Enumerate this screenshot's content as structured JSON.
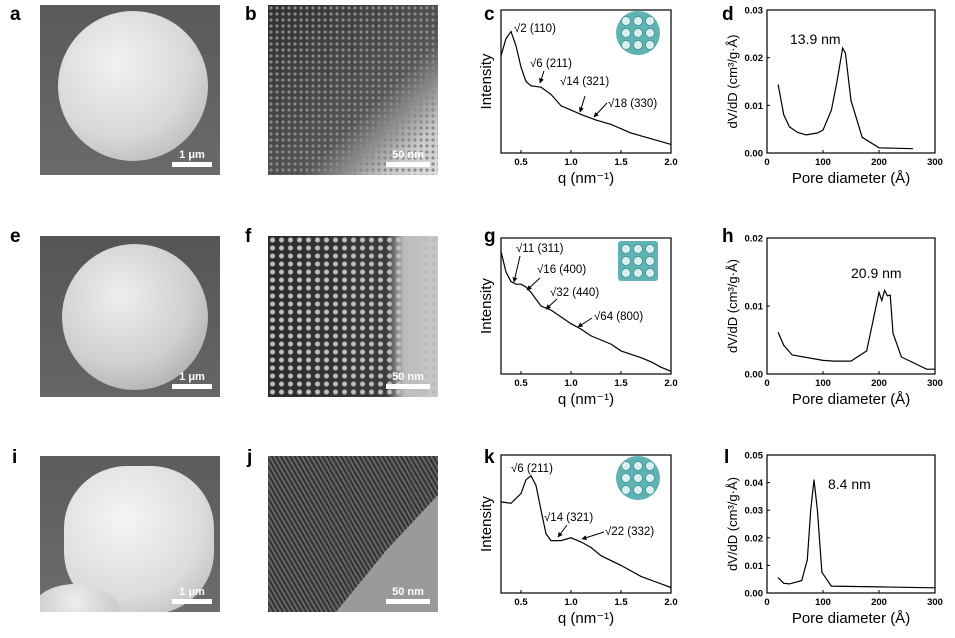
{
  "panel_letters": [
    "a",
    "b",
    "c",
    "d",
    "e",
    "f",
    "g",
    "h",
    "i",
    "j",
    "k",
    "l"
  ],
  "sem_images": [
    {
      "panel": "a",
      "scale_bar": "1 μm"
    },
    {
      "panel": "e",
      "scale_bar": "1 μm"
    },
    {
      "panel": "i",
      "scale_bar": "1 μm"
    }
  ],
  "tem_images": [
    {
      "panel": "b",
      "scale_bar": "50 nm"
    },
    {
      "panel": "f",
      "scale_bar": "50 nm"
    },
    {
      "panel": "j",
      "scale_bar": "50 nm"
    }
  ],
  "colors": {
    "line": "#000000",
    "inset_structure": "#5fb3b3"
  },
  "chart_data": [
    {
      "panel": "c",
      "type": "line",
      "xlabel": "q (nm⁻¹)",
      "ylabel": "Intensity",
      "xlim": [
        0.3,
        2.0
      ],
      "xticks": [
        "0.5",
        "1.0",
        "1.5",
        "2.0"
      ],
      "ylim": [
        0,
        1
      ],
      "yticks": [],
      "annotations": [
        "√2 (110)",
        "√6 (211)",
        "√14 (321)",
        "√18 (330)"
      ],
      "x": [
        0.3,
        0.35,
        0.4,
        0.45,
        0.5,
        0.55,
        0.6,
        0.7,
        0.8,
        0.9,
        1.0,
        1.1,
        1.25,
        1.4,
        1.5,
        1.6,
        1.75,
        1.9,
        2.0
      ],
      "y": [
        0.68,
        0.8,
        0.85,
        0.75,
        0.6,
        0.5,
        0.47,
        0.46,
        0.41,
        0.33,
        0.3,
        0.27,
        0.23,
        0.2,
        0.17,
        0.14,
        0.11,
        0.08,
        0.06
      ]
    },
    {
      "panel": "d",
      "type": "line",
      "xlabel": "Pore diameter (Å)",
      "ylabel": "dV/dD (cm³/g·Å)",
      "xlim": [
        0,
        300
      ],
      "xticks": [
        "0",
        "100",
        "200",
        "300"
      ],
      "ylim": [
        0,
        0.03
      ],
      "yticks": [
        "0.00",
        "0.01",
        "0.02",
        "0.03"
      ],
      "annotations": [
        "13.9 nm"
      ],
      "x": [
        20,
        30,
        40,
        55,
        70,
        90,
        100,
        115,
        125,
        135,
        140,
        150,
        170,
        200,
        260
      ],
      "y": [
        0.0143,
        0.008,
        0.0055,
        0.0043,
        0.0038,
        0.0042,
        0.0048,
        0.009,
        0.015,
        0.022,
        0.021,
        0.011,
        0.0033,
        0.0011,
        0.0009
      ]
    },
    {
      "panel": "g",
      "type": "line",
      "xlabel": "q (nm⁻¹)",
      "ylabel": "Intensity",
      "xlim": [
        0.3,
        2.0
      ],
      "xticks": [
        "0.5",
        "1.0",
        "1.5",
        "2.0"
      ],
      "ylim": [
        0,
        1
      ],
      "yticks": [],
      "annotations": [
        "√11 (311)",
        "√16 (400)",
        "√32 (440)",
        "√64 (800)"
      ],
      "x": [
        0.3,
        0.35,
        0.4,
        0.45,
        0.5,
        0.55,
        0.6,
        0.7,
        0.8,
        0.9,
        1.0,
        1.1,
        1.2,
        1.4,
        1.5,
        1.7,
        1.8,
        1.9,
        2.0
      ],
      "y": [
        0.9,
        0.75,
        0.68,
        0.66,
        0.66,
        0.64,
        0.6,
        0.5,
        0.47,
        0.42,
        0.37,
        0.33,
        0.28,
        0.22,
        0.17,
        0.12,
        0.09,
        0.05,
        0.02
      ]
    },
    {
      "panel": "h",
      "type": "line",
      "xlabel": "Pore diameter (Å)",
      "ylabel": "dV/dD (cm³/g·Å)",
      "xlim": [
        0,
        300
      ],
      "xticks": [
        "0",
        "100",
        "200",
        "300"
      ],
      "ylim": [
        0,
        0.02
      ],
      "yticks": [
        "0.00",
        "0.01",
        "0.02"
      ],
      "annotations": [
        "20.9 nm"
      ],
      "x": [
        20,
        30,
        45,
        100,
        120,
        150,
        178,
        200,
        205,
        210,
        215,
        220,
        225,
        240,
        285,
        300
      ],
      "y": [
        0.0061,
        0.0042,
        0.0028,
        0.002,
        0.0019,
        0.0019,
        0.0034,
        0.012,
        0.0108,
        0.0123,
        0.0115,
        0.0116,
        0.006,
        0.0025,
        0.0007,
        0.0007
      ]
    },
    {
      "panel": "k",
      "type": "line",
      "xlabel": "q (nm⁻¹)",
      "ylabel": "Intensity",
      "xlim": [
        0.3,
        2.0
      ],
      "xticks": [
        "0.5",
        "1.0",
        "1.5",
        "2.0"
      ],
      "ylim": [
        0,
        1
      ],
      "yticks": [],
      "annotations": [
        "√6 (211)",
        "√14 (321)",
        "√22 (332)"
      ],
      "x": [
        0.3,
        0.4,
        0.5,
        0.55,
        0.6,
        0.65,
        0.7,
        0.75,
        0.8,
        0.9,
        1.0,
        1.1,
        1.2,
        1.3,
        1.5,
        1.7,
        1.85,
        2.0
      ],
      "y": [
        0.66,
        0.65,
        0.72,
        0.82,
        0.85,
        0.78,
        0.6,
        0.43,
        0.38,
        0.38,
        0.4,
        0.37,
        0.33,
        0.27,
        0.2,
        0.12,
        0.08,
        0.04
      ]
    },
    {
      "panel": "l",
      "type": "line",
      "xlabel": "Pore diameter (Å)",
      "ylabel": "dV/dD (cm³/g·Å)",
      "xlim": [
        0,
        300
      ],
      "xticks": [
        "0",
        "100",
        "200",
        "300"
      ],
      "ylim": [
        0,
        0.05
      ],
      "yticks": [
        "0.00",
        "0.01",
        "0.02",
        "0.03",
        "0.04",
        "0.05"
      ],
      "annotations": [
        "8.4 nm"
      ],
      "x": [
        20,
        30,
        40,
        62,
        72,
        78,
        84,
        90,
        98,
        115,
        200,
        300
      ],
      "y": [
        0.0055,
        0.0035,
        0.0033,
        0.0045,
        0.012,
        0.03,
        0.041,
        0.03,
        0.0075,
        0.0025,
        0.0022,
        0.0019
      ]
    }
  ]
}
